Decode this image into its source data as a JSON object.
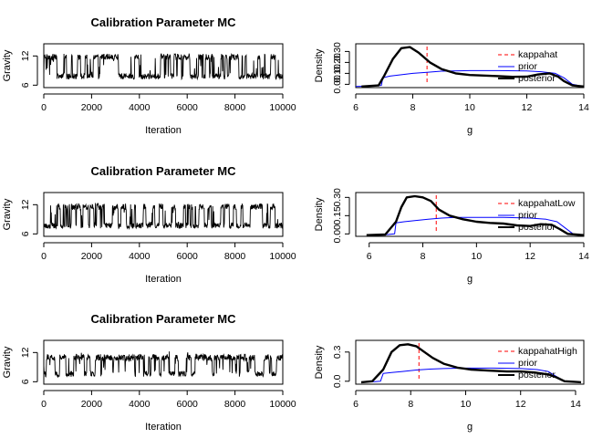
{
  "chart_data": [
    {
      "type": "line",
      "title": "Calibration Parameter MC",
      "xlabel": "Iteration",
      "ylabel": "Gravity",
      "xlim": [
        0,
        10000
      ],
      "ylim": [
        5.5,
        14.5
      ],
      "x_ticks": [
        0,
        2000,
        4000,
        6000,
        8000,
        10000
      ],
      "y_ticks": [
        6,
        12
      ],
      "trace": {
        "iterations": 10000,
        "low_level": 7.7,
        "high_level": 11.8,
        "min": 6.8,
        "max": 12.5,
        "seed": 11
      }
    },
    {
      "type": "line",
      "title": "",
      "xlabel": "g",
      "ylabel": "Density",
      "xlim": [
        6,
        14
      ],
      "ylim": [
        -0.03,
        0.37
      ],
      "x_ticks": [
        6,
        8,
        10,
        12,
        14
      ],
      "y_ticks": [
        0.0,
        0.1,
        0.2,
        0.3
      ],
      "y_tick_labels": [
        "0.00",
        "0.10",
        "0.20",
        "0.30"
      ],
      "reference_line": {
        "name": "kappahat",
        "x": 8.5,
        "color": "#ff0000"
      },
      "series": [
        {
          "name": "prior",
          "color": "#0000ff",
          "x": [
            6.0,
            6.6,
            6.9,
            6.95,
            7.2,
            7.5,
            8.0,
            8.5,
            9.0,
            10.0,
            11.0,
            12.0,
            12.5,
            13.0,
            13.3,
            13.6,
            14.0
          ],
          "y": [
            -0.02,
            -0.015,
            -0.01,
            0.06,
            0.075,
            0.085,
            0.1,
            0.11,
            0.12,
            0.125,
            0.125,
            0.122,
            0.115,
            0.1,
            0.06,
            0.0,
            -0.02
          ]
        },
        {
          "name": "posterior",
          "color": "#000000",
          "x": [
            6.2,
            6.8,
            7.0,
            7.3,
            7.6,
            7.9,
            8.2,
            8.6,
            9.0,
            9.5,
            10.0,
            10.5,
            11.0,
            11.5,
            12.0,
            12.4,
            12.8,
            13.1,
            13.3,
            13.6,
            14.0
          ],
          "y": [
            -0.02,
            -0.01,
            0.08,
            0.23,
            0.33,
            0.34,
            0.29,
            0.2,
            0.14,
            0.1,
            0.085,
            0.08,
            0.075,
            0.068,
            0.07,
            0.09,
            0.1,
            0.07,
            0.03,
            -0.01,
            -0.02
          ]
        }
      ],
      "legend": [
        "kappahat",
        "prior",
        "posterior"
      ],
      "legend_position": "right"
    },
    {
      "type": "line",
      "title": "Calibration Parameter MC",
      "xlabel": "Iteration",
      "ylabel": "Gravity",
      "xlim": [
        0,
        10000
      ],
      "ylim": [
        5.5,
        14.5
      ],
      "x_ticks": [
        0,
        2000,
        4000,
        6000,
        8000,
        10000
      ],
      "y_ticks": [
        6,
        12
      ],
      "trace": {
        "iterations": 10000,
        "low_level": 7.6,
        "high_level": 11.6,
        "min": 6.9,
        "max": 12.6,
        "seed": 23
      }
    },
    {
      "type": "line",
      "title": "",
      "xlabel": "g",
      "ylabel": "Density",
      "xlim": [
        5.5,
        14
      ],
      "ylim": [
        -0.02,
        0.34
      ],
      "x_ticks": [
        6,
        8,
        10,
        12,
        14
      ],
      "y_ticks": [
        0.0,
        0.15,
        0.3
      ],
      "y_tick_labels": [
        "0.00",
        "0.15",
        "0.30"
      ],
      "reference_line": {
        "name": "kappahatLow",
        "x": 8.5,
        "color": "#ff0000"
      },
      "series": [
        {
          "name": "prior",
          "color": "#0000ff",
          "x": [
            6.0,
            6.7,
            6.95,
            7.0,
            7.3,
            7.7,
            8.2,
            8.7,
            9.2,
            10.0,
            11.0,
            12.0,
            12.6,
            13.0,
            13.3,
            13.6,
            14.0
          ],
          "y": [
            -0.01,
            -0.005,
            0.0,
            0.09,
            0.1,
            0.11,
            0.12,
            0.13,
            0.135,
            0.135,
            0.135,
            0.13,
            0.12,
            0.1,
            0.05,
            0.0,
            -0.01
          ]
        },
        {
          "name": "posterior",
          "color": "#000000",
          "x": [
            5.9,
            6.6,
            7.0,
            7.2,
            7.4,
            7.7,
            8.0,
            8.3,
            8.6,
            9.0,
            9.5,
            10.0,
            10.5,
            11.0,
            11.5,
            12.0,
            12.4,
            12.8,
            13.1,
            13.4,
            14.0
          ],
          "y": [
            -0.01,
            -0.005,
            0.1,
            0.22,
            0.3,
            0.31,
            0.3,
            0.27,
            0.2,
            0.15,
            0.12,
            0.1,
            0.09,
            0.085,
            0.07,
            0.065,
            0.08,
            0.075,
            0.04,
            0.0,
            -0.01
          ]
        }
      ],
      "legend": [
        "kappahatLow",
        "prior",
        "posterior"
      ],
      "legend_position": "right"
    },
    {
      "type": "line",
      "title": "Calibration Parameter MC",
      "xlabel": "Iteration",
      "ylabel": "Gravity",
      "xlim": [
        0,
        10000
      ],
      "ylim": [
        5.5,
        14.5
      ],
      "x_ticks": [
        0,
        2000,
        4000,
        6000,
        8000,
        10000
      ],
      "y_ticks": [
        6,
        12
      ],
      "trace": {
        "iterations": 10000,
        "low_level": 7.5,
        "high_level": 11.0,
        "min": 6.9,
        "max": 12.3,
        "seed": 47
      }
    },
    {
      "type": "line",
      "title": "",
      "xlabel": "g",
      "ylabel": "Density",
      "xlim": [
        6,
        14.3
      ],
      "ylim": [
        -0.03,
        0.42
      ],
      "x_ticks": [
        6,
        8,
        10,
        12,
        14
      ],
      "y_ticks": [
        0.0,
        0.3
      ],
      "y_tick_labels": [
        "0.0",
        "0.3"
      ],
      "reference_line": {
        "name": "kappahatHigh",
        "x": 8.3,
        "color": "#ff0000"
      },
      "series": [
        {
          "name": "prior",
          "color": "#0000ff",
          "x": [
            6.2,
            6.7,
            6.9,
            7.0,
            7.3,
            7.7,
            8.2,
            8.7,
            9.2,
            10.0,
            11.0,
            12.0,
            12.6,
            13.0,
            13.3,
            13.6,
            14.2
          ],
          "y": [
            -0.01,
            -0.005,
            0.0,
            0.08,
            0.09,
            0.1,
            0.115,
            0.125,
            0.13,
            0.135,
            0.135,
            0.13,
            0.12,
            0.1,
            0.05,
            0.0,
            -0.01
          ]
        },
        {
          "name": "posterior",
          "color": "#000000",
          "x": [
            6.2,
            6.6,
            7.0,
            7.3,
            7.6,
            7.9,
            8.2,
            8.5,
            8.8,
            9.2,
            9.7,
            10.2,
            10.8,
            11.5,
            12.0,
            12.5,
            13.0,
            13.3,
            13.6,
            14.2
          ],
          "y": [
            -0.01,
            0.0,
            0.12,
            0.3,
            0.37,
            0.38,
            0.36,
            0.3,
            0.24,
            0.18,
            0.14,
            0.12,
            0.11,
            0.1,
            0.1,
            0.09,
            0.07,
            0.04,
            0.0,
            -0.01
          ]
        }
      ],
      "legend": [
        "kappahatHigh",
        "prior",
        "posterior"
      ],
      "legend_position": "right"
    }
  ]
}
